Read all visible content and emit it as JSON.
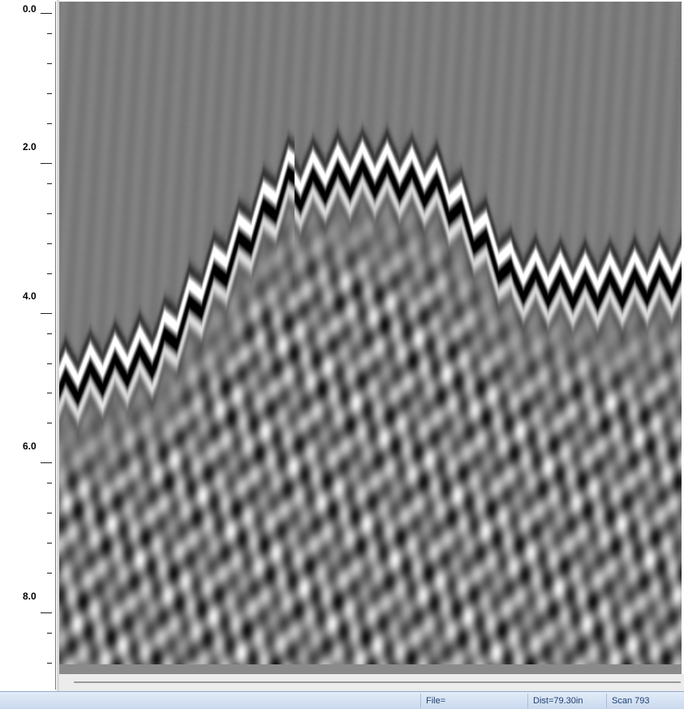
{
  "depth_axis": {
    "labels": [
      "0.0",
      "2.0",
      "4.0",
      "6.0",
      "8.0"
    ],
    "major_values": [
      0,
      2,
      4,
      6,
      8
    ],
    "minor_step": 0.4,
    "max": 8.8
  },
  "status_bar": {
    "file": "File=",
    "distance": "Dist=79.30in",
    "scan": "Scan 793"
  },
  "colors": {
    "background": "#7c7c7c",
    "status_bar": "#d5e2f3",
    "status_text": "#1e3f73"
  }
}
